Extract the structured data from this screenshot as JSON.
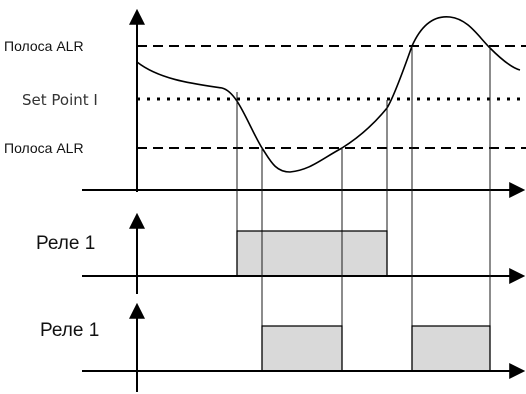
{
  "labels": {
    "alr_upper": "Полоса ALR",
    "set_point": "Set Point I",
    "alr_lower": "Полоса ALR",
    "relay_1_top": "Реле 1",
    "relay_1_bottom": "Реле 1"
  },
  "colors": {
    "line": "#000000",
    "fill": "#d9d9d9",
    "guide": "#1a1a1a"
  }
}
